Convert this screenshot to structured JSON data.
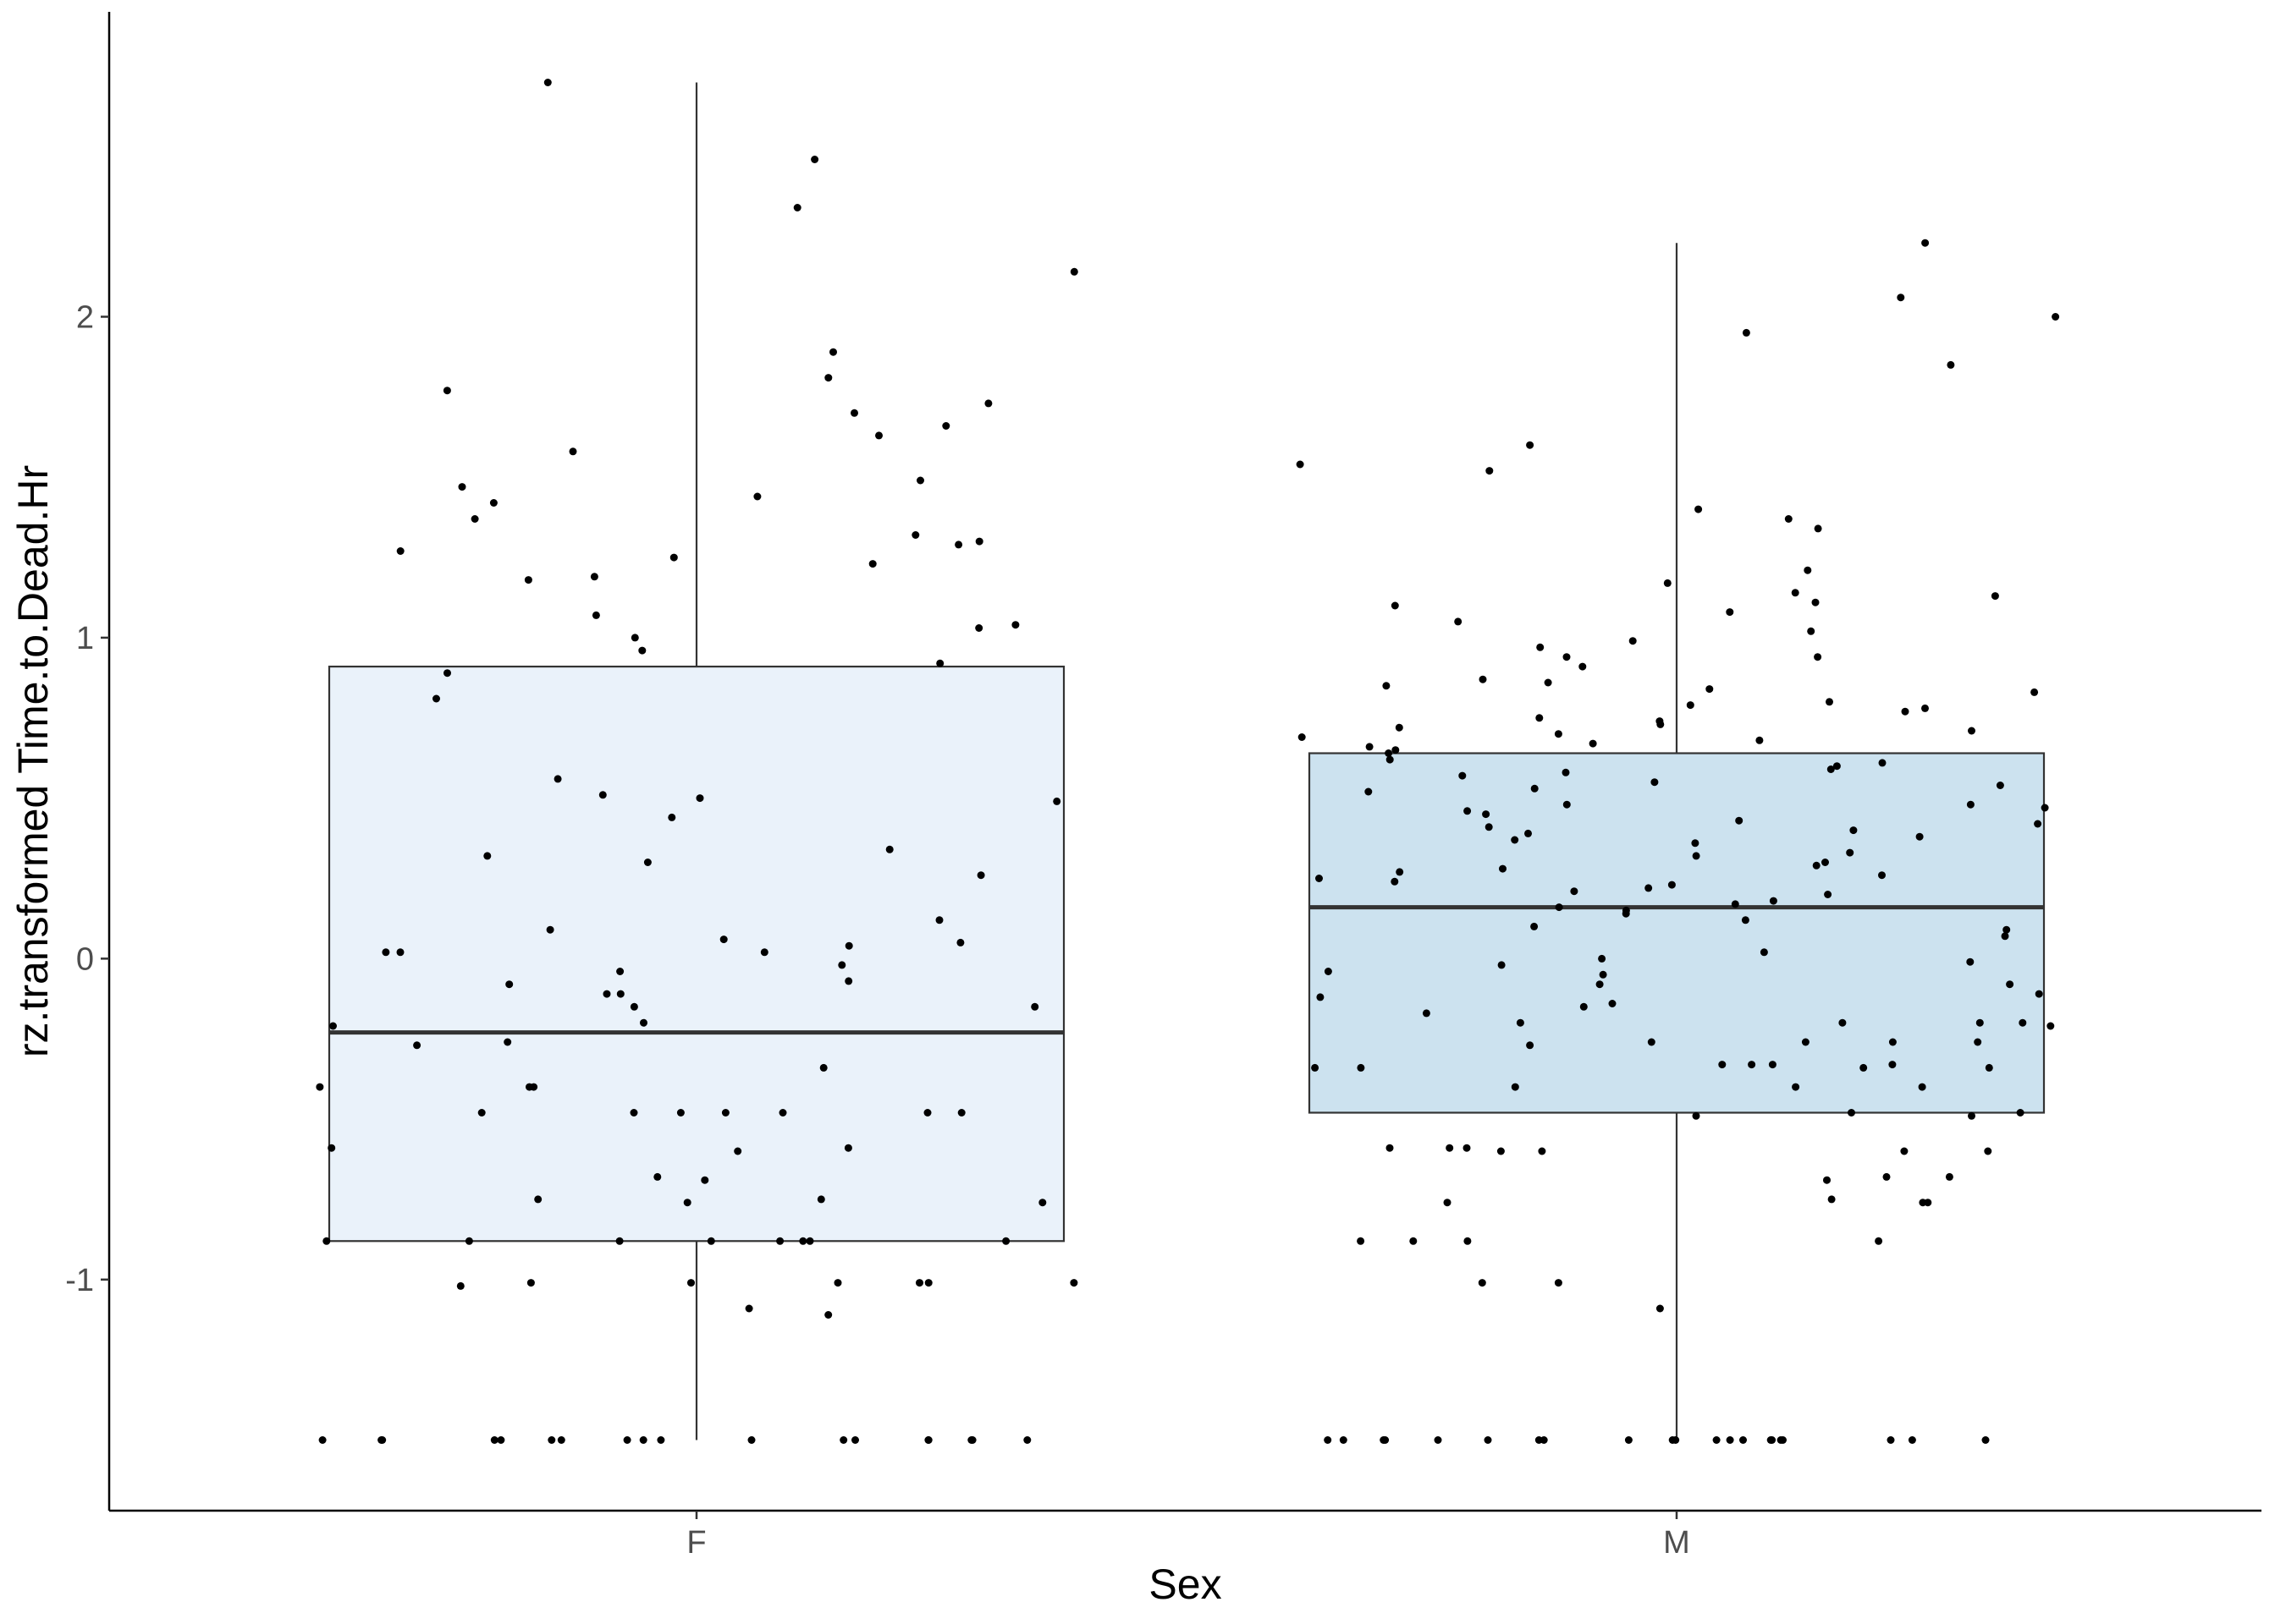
{
  "chart_data": {
    "type": "boxplot",
    "title": "",
    "xlabel": "Sex",
    "ylabel": "rz.transformed Time.to.Dead.Hr",
    "categories": [
      "F",
      "M"
    ],
    "ylim": [
      -1.72,
      2.95
    ],
    "yticks": [
      -1,
      0,
      1,
      2
    ],
    "ytick_labels": [
      "-1",
      "0",
      "1",
      "2"
    ],
    "grid": false,
    "legend": "none",
    "boxes": [
      {
        "group": "F",
        "whisker_low": -1.5,
        "q1": -0.88,
        "median": -0.23,
        "q3": 0.91,
        "whisker_high": 2.73,
        "fill": "#eaf2fa"
      },
      {
        "group": "M",
        "whisker_low": -1.5,
        "q1": -0.48,
        "median": 0.16,
        "q3": 0.64,
        "whisker_high": 2.23,
        "fill": "#cce2ef"
      }
    ],
    "points": [
      {
        "group": "F",
        "values": [
          2.49,
          2.73,
          2.34,
          2.14,
          1.89,
          1.81,
          1.77,
          1.73,
          1.7,
          1.66,
          1.63,
          1.58,
          1.49,
          1.47,
          1.44,
          1.42,
          1.37,
          1.32,
          1.3,
          1.29,
          1.27,
          1.25,
          1.23,
          1.19,
          1.18,
          1.07,
          1.04,
          1.03,
          1.0,
          0.96,
          0.92,
          0.89,
          0.81,
          0.56,
          0.51,
          0.5,
          0.49,
          0.44,
          0.34,
          0.32,
          0.3,
          0.26,
          0.12,
          0.09,
          0.06,
          0.05,
          0.04,
          0.02,
          0.02,
          0.02,
          -0.02,
          -0.04,
          -0.07,
          -0.08,
          -0.11,
          -0.11,
          -0.15,
          -0.15,
          -0.2,
          -0.21,
          -0.26,
          -0.27,
          -0.34,
          -0.4,
          -0.4,
          -0.4,
          -0.48,
          -0.48,
          -0.48,
          -0.48,
          -0.48,
          -0.48,
          -0.48,
          -0.59,
          -0.59,
          -0.6,
          -0.68,
          -0.69,
          -0.75,
          -0.75,
          -0.76,
          -0.76,
          -0.88,
          -0.88,
          -0.88,
          -0.88,
          -0.88,
          -0.88,
          -0.88,
          -0.88,
          -1.01,
          -1.01,
          -1.01,
          -1.01,
          -1.01,
          -1.01,
          -1.02,
          -1.09,
          -1.11,
          -1.5,
          -1.5,
          -1.5,
          -1.5,
          -1.5,
          -1.5,
          -1.5,
          -1.5,
          -1.5,
          -1.5,
          -1.5,
          -1.5,
          -1.5,
          -1.5,
          -1.5,
          -1.5,
          -1.5,
          -1.5
        ]
      },
      {
        "group": "M",
        "values": [
          2.23,
          2.06,
          2.0,
          1.95,
          1.85,
          1.6,
          1.54,
          1.52,
          1.4,
          1.37,
          1.34,
          1.21,
          1.17,
          1.14,
          1.13,
          1.11,
          1.1,
          1.08,
          1.05,
          1.02,
          0.99,
          0.97,
          0.94,
          0.94,
          0.91,
          0.87,
          0.86,
          0.85,
          0.84,
          0.83,
          0.8,
          0.79,
          0.78,
          0.77,
          0.75,
          0.74,
          0.73,
          0.72,
          0.71,
          0.7,
          0.69,
          0.68,
          0.67,
          0.66,
          0.65,
          0.64,
          0.62,
          0.61,
          0.6,
          0.59,
          0.58,
          0.57,
          0.55,
          0.54,
          0.53,
          0.52,
          0.48,
          0.48,
          0.47,
          0.46,
          0.45,
          0.43,
          0.42,
          0.41,
          0.4,
          0.39,
          0.38,
          0.37,
          0.36,
          0.33,
          0.32,
          0.3,
          0.29,
          0.28,
          0.27,
          0.26,
          0.25,
          0.24,
          0.23,
          0.22,
          0.21,
          0.2,
          0.18,
          0.17,
          0.16,
          0.15,
          0.14,
          0.12,
          0.1,
          0.09,
          0.07,
          0.02,
          0.0,
          -0.01,
          -0.02,
          -0.04,
          -0.05,
          -0.08,
          -0.08,
          -0.11,
          -0.12,
          -0.14,
          -0.15,
          -0.17,
          -0.2,
          -0.2,
          -0.2,
          -0.2,
          -0.21,
          -0.26,
          -0.26,
          -0.26,
          -0.26,
          -0.27,
          -0.33,
          -0.33,
          -0.33,
          -0.33,
          -0.34,
          -0.34,
          -0.34,
          -0.34,
          -0.4,
          -0.4,
          -0.4,
          -0.48,
          -0.48,
          -0.49,
          -0.49,
          -0.59,
          -0.59,
          -0.59,
          -0.6,
          -0.6,
          -0.6,
          -0.6,
          -0.68,
          -0.68,
          -0.69,
          -0.75,
          -0.76,
          -0.76,
          -0.76,
          -0.88,
          -0.88,
          -0.88,
          -0.88,
          -1.01,
          -1.01,
          -1.09,
          -1.5,
          -1.5,
          -1.5,
          -1.5,
          -1.5,
          -1.5,
          -1.5,
          -1.5,
          -1.5,
          -1.5,
          -1.5,
          -1.5,
          -1.5,
          -1.5,
          -1.5,
          -1.5,
          -1.5,
          -1.5,
          -1.5,
          -1.5,
          -1.5
        ]
      }
    ],
    "colors": {
      "box_outline": "#333333",
      "median_line": "#333333",
      "whisker": "#333333",
      "point": "#000000",
      "axis": "#000000"
    }
  }
}
